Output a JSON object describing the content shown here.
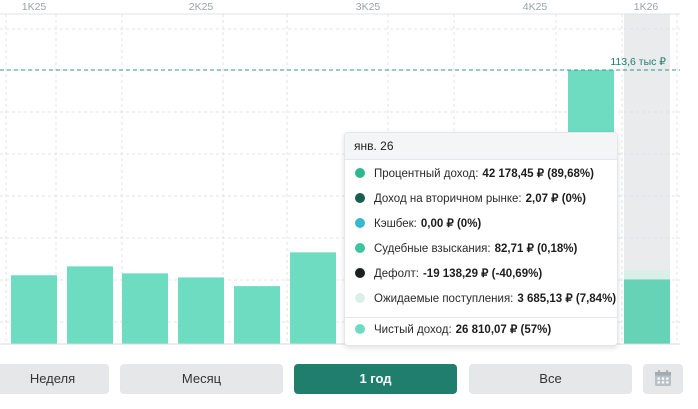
{
  "chart_data": {
    "type": "bar",
    "x_ticks": [
      "1K25",
      "2K25",
      "3K25",
      "4K25",
      "1K26"
    ],
    "categories": [
      "2025-02",
      "2025-03",
      "2025-04",
      "2025-05",
      "2025-06",
      "2025-07",
      "2025-08",
      "2025-09",
      "2025-10",
      "2025-11",
      "2025-12",
      "2026-01"
    ],
    "values": [
      28.5,
      32.2,
      29.3,
      27.6,
      24.0,
      38.0,
      null,
      null,
      null,
      null,
      113.6,
      26.81
    ],
    "ylim": [
      0,
      113.6
    ],
    "unit": "тыс ₽",
    "reference_line": {
      "value": 113.6,
      "label": "113,6 тыс ₽"
    },
    "expected_extra": 3.685,
    "grid": true,
    "colors": {
      "bar": "#6ddcc1",
      "bar_selected": "#66d2b6",
      "expected": "#d9efe7",
      "highlight": "#e9ebed",
      "grid": "#dfe3e6",
      "ref_line": "#2f9a7f",
      "ref_label": "#1f7f6c"
    }
  },
  "tooltip": {
    "title": "янв. 26",
    "rows": [
      {
        "label": "Процентный доход:",
        "value": "42 178,45 ₽ (89,68%)",
        "color": "#2db892"
      },
      {
        "label": "Доход на вторичном рынке:",
        "value": "2,07 ₽ (0%)",
        "color": "#1a5e4f"
      },
      {
        "label": "Кэшбек:",
        "value": "0,00 ₽ (0%)",
        "color": "#38b8d0"
      },
      {
        "label": "Судебные взыскания:",
        "value": "82,71 ₽ (0,18%)",
        "color": "#3cc49a"
      },
      {
        "label": "Дефолт:",
        "value": "-19 138,29 ₽ (-40,69%)",
        "color": "#1b1f1f"
      },
      {
        "label": "Ожидаемые поступления:",
        "value": "3 685,13 ₽ (7,84%)",
        "color": "#d9efe7"
      }
    ],
    "total": {
      "label": "Чистый доход:",
      "value": "26 810,07 ₽ (57%)",
      "color": "#6ddcc1"
    }
  },
  "periods": {
    "week": "Неделя",
    "month": "Месяц",
    "year": "1 год",
    "all": "Все",
    "active": "year"
  },
  "calendar_icon": "calendar-icon"
}
